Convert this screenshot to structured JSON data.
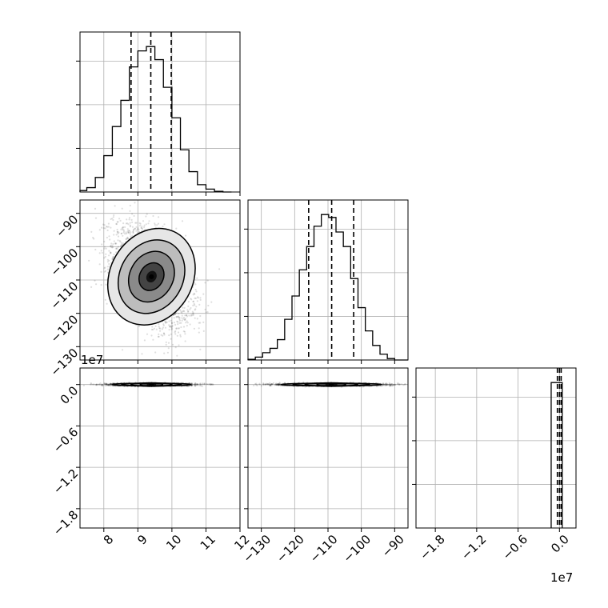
{
  "chart_data": {
    "type": "corner",
    "grid": true,
    "parameters": [
      {
        "range": [
          7.3,
          12
        ],
        "ticks": [
          8,
          9,
          10,
          11,
          12
        ],
        "tick_labels": [
          "8",
          "9",
          "10",
          "11",
          "12"
        ],
        "offset_text": ""
      },
      {
        "range": [
          -134,
          -86
        ],
        "ticks": [
          -130,
          -120,
          -110,
          -100,
          -90
        ],
        "tick_labels": [
          "−130",
          "−120",
          "−110",
          "−100",
          "−90"
        ],
        "offset_text": ""
      },
      {
        "range": [
          -20800000,
          2400000
        ],
        "ticks": [
          -18000000,
          -12000000,
          -6000000,
          0
        ],
        "tick_labels": [
          "−1.8",
          "−1.2",
          "−0.6",
          "0.0"
        ],
        "offset_text": "1e7"
      }
    ],
    "histograms": [
      {
        "param": 0,
        "bins": [
          7.2,
          7.5,
          7.75,
          8.0,
          8.25,
          8.5,
          8.75,
          9.0,
          9.25,
          9.5,
          9.75,
          10.0,
          10.25,
          10.5,
          10.75,
          11.0,
          11.25,
          11.5,
          11.75
        ],
        "counts": [
          1,
          3,
          10,
          25,
          45,
          63,
          86,
          97,
          100,
          91,
          72,
          51,
          29,
          14,
          5,
          2,
          0.5,
          0
        ],
        "quantiles": [
          8.8,
          9.38,
          9.98
        ]
      },
      {
        "param": 1,
        "bins": [
          -134,
          -131.8,
          -129.6,
          -127.4,
          -125.2,
          -123.0,
          -120.8,
          -118.6,
          -116.4,
          -114.2,
          -112.0,
          -109.8,
          -107.6,
          -105.4,
          -103.2,
          -101.0,
          -98.8,
          -96.6,
          -94.4,
          -92.2,
          -90.0,
          -86.0
        ],
        "counts": [
          0.5,
          2,
          5,
          8,
          14,
          28,
          44,
          62,
          78,
          92,
          100,
          98,
          88,
          78,
          56,
          36,
          20,
          10,
          4,
          1,
          0
        ],
        "quantiles": [
          -115.8,
          -108.9,
          -102.3
        ]
      },
      {
        "param": 2,
        "bins": [
          -1200000,
          -400000,
          400000
        ],
        "counts": [
          100,
          100
        ],
        "quantiles": [
          -300000,
          0,
          250000
        ]
      }
    ],
    "scatter_panels": [
      {
        "x_param": 0,
        "y_param": 1,
        "points_center": [
          9.4,
          -109.0
        ],
        "points_std": [
          0.55,
          7.2
        ],
        "correlation": -0.45,
        "n_points": 3500,
        "contour_levels": 4
      },
      {
        "x_param": 0,
        "y_param": 2,
        "points_center": [
          9.4,
          0
        ],
        "points_std": [
          0.55,
          90000
        ],
        "correlation": 0,
        "n_points": 3500,
        "contour_levels": 4
      },
      {
        "x_param": 1,
        "y_param": 2,
        "points_center": [
          -109.0,
          0
        ],
        "points_std": [
          7.2,
          90000
        ],
        "correlation": 0,
        "n_points": 3500,
        "contour_levels": 4
      }
    ],
    "colors": {
      "frame": "#000000",
      "grid": "#b0b0b0",
      "points": "#000000",
      "quantile_line": "#000000"
    }
  }
}
